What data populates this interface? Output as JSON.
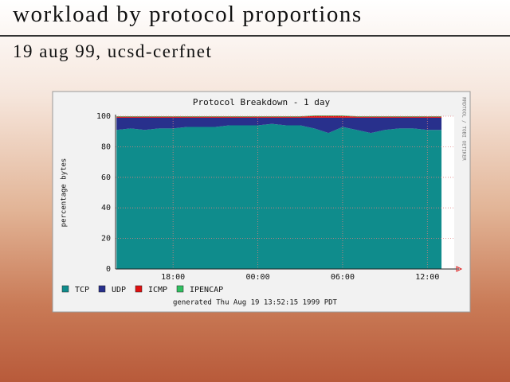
{
  "slide": {
    "title": "workload by protocol proportions",
    "subtitle": "19 aug 99, ucsd-cerfnet"
  },
  "chart_data": {
    "type": "stacked-area",
    "title": "Protocol Breakdown - 1 day",
    "y_label": "percentage bytes",
    "side_note": "RRDTOOL / TOBI OETIKER",
    "footer": "generated Thu Aug 19 13:52:15 1999 PDT",
    "x": [
      14,
      15,
      16,
      17,
      18,
      19,
      20,
      21,
      22,
      23,
      24,
      25,
      26,
      27,
      28,
      29,
      30,
      31,
      32,
      33,
      34,
      35,
      36,
      37
    ],
    "series": [
      {
        "name": "TCP",
        "color": "#0f8c8c",
        "values": [
          91,
          92,
          91,
          92,
          92,
          93,
          93,
          93,
          94,
          94,
          94,
          95,
          94,
          94,
          92,
          89,
          93,
          91,
          89,
          91,
          92,
          92,
          91,
          91
        ]
      },
      {
        "name": "UDP",
        "color": "#28308c",
        "values": [
          8,
          7,
          8,
          7,
          7,
          6,
          6,
          6,
          5,
          5,
          5,
          4,
          5,
          5,
          7,
          10,
          6,
          8,
          10,
          8,
          7,
          7,
          8,
          8
        ]
      },
      {
        "name": "ICMP",
        "color": "#e01010",
        "values": [
          0.7,
          0.7,
          0.7,
          0.7,
          0.7,
          0.7,
          0.7,
          0.7,
          0.7,
          0.7,
          0.7,
          0.7,
          0.7,
          0.7,
          1.2,
          1.2,
          1.2,
          0.7,
          0.7,
          0.7,
          0.7,
          0.7,
          0.7,
          0.7
        ]
      },
      {
        "name": "IPENCAP",
        "color": "#30c060",
        "values": [
          0.3,
          0.3,
          0.3,
          0.3,
          0.3,
          0.3,
          0.3,
          0.3,
          0.3,
          0.3,
          0.3,
          0.3,
          0.3,
          0.3,
          0.3,
          0.3,
          0.3,
          0.3,
          0.3,
          0.3,
          0.3,
          0.3,
          0.3,
          0.3
        ]
      }
    ],
    "xlim": [
      13.93,
      37.9
    ],
    "xticks": [
      {
        "value": 18,
        "label": "18:00"
      },
      {
        "value": 24,
        "label": "00:00"
      },
      {
        "value": 30,
        "label": "06:00"
      },
      {
        "value": 36,
        "label": "12:00"
      }
    ],
    "ylim": [
      0,
      100
    ],
    "yticks": [
      0,
      20,
      40,
      60,
      80,
      100
    ],
    "grid": true
  }
}
